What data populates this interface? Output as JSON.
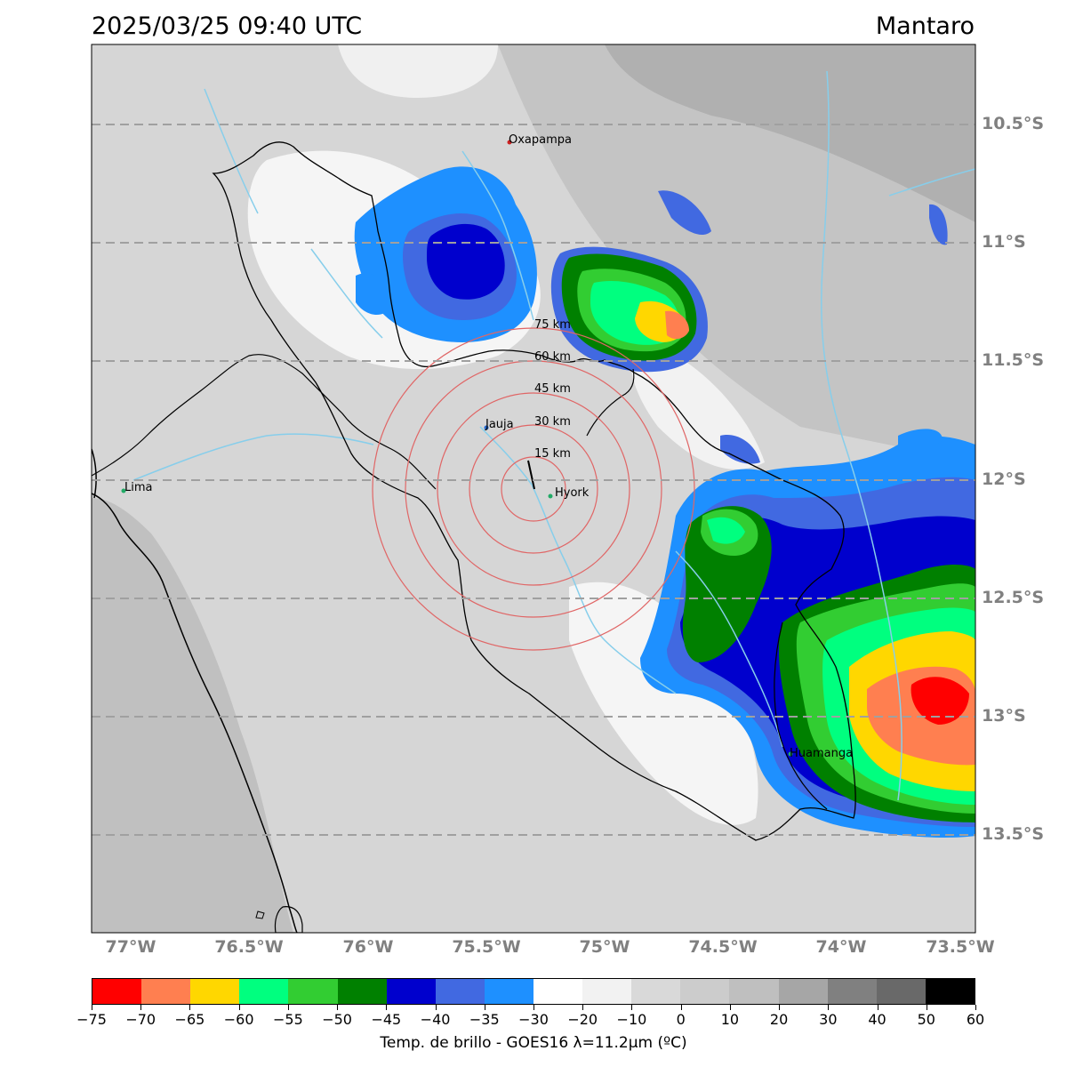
{
  "title_left": "2025/03/25 09:40 UTC",
  "title_right": "Mantaro",
  "lat_labels": [
    "10.5°S",
    "11°S",
    "11.5°S",
    "12°S",
    "12.5°S",
    "13°S",
    "13.5°S"
  ],
  "lon_labels": [
    "77°W",
    "76.5°W",
    "76°W",
    "75.5°W",
    "75°W",
    "74.5°W",
    "74°W",
    "73.5°W"
  ],
  "cities": [
    {
      "name": "Oxapampa",
      "color": "#cc2222"
    },
    {
      "name": "Jauja",
      "color": "#2266cc"
    },
    {
      "name": "Hyork",
      "color": "#22aa66"
    },
    {
      "name": "Lima",
      "color": "#22aa66"
    },
    {
      "name": "Huamanga",
      "color": "#22aa66"
    }
  ],
  "range_rings": [
    "15 km",
    "30 km",
    "45 km",
    "60 km",
    "75 km"
  ],
  "ring_color": "#e06666",
  "river_color": "#87ceeb",
  "colorbar": {
    "label": "Temp. de brillo - GOES16 λ=11.2μm (ºC)",
    "ticks": [
      "−75",
      "−70",
      "−65",
      "−60",
      "−55",
      "−50",
      "−45",
      "−40",
      "−35",
      "−30",
      "−20",
      "−10",
      "0",
      "10",
      "20",
      "30",
      "40",
      "50",
      "60"
    ],
    "colors": [
      "#ff0000",
      "#ff7f50",
      "#ffd700",
      "#00ff7f",
      "#32cd32",
      "#008000",
      "#0000cd",
      "#4169e1",
      "#1e90ff",
      "#ffffff",
      "#f2f2f2",
      "#d9d9d9",
      "#cccccc",
      "#bfbfbf",
      "#a6a6a6",
      "#808080",
      "#696969",
      "#000000"
    ]
  }
}
